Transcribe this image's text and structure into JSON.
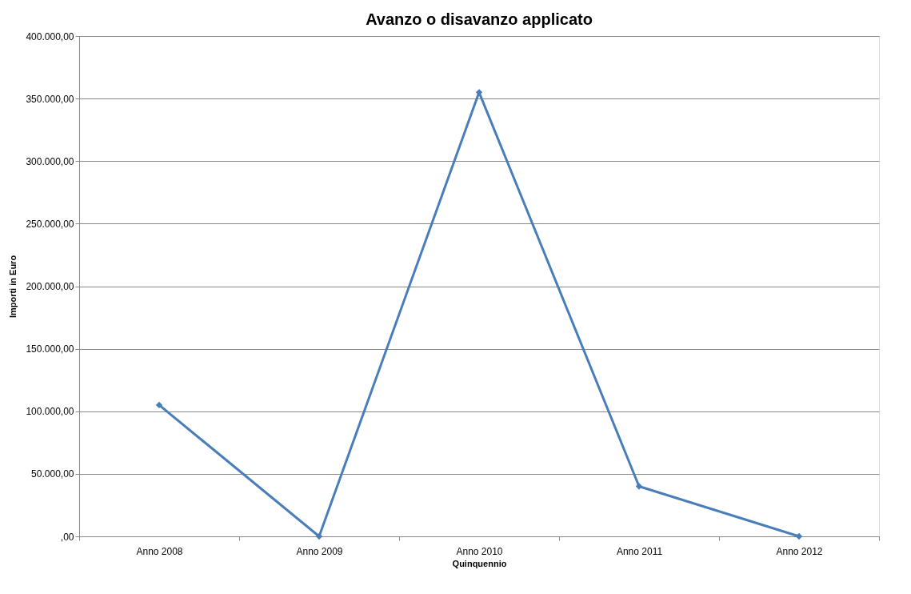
{
  "chart_data": {
    "type": "line",
    "title": "Avanzo o disavanzo applicato",
    "xlabel": "Quinquennio",
    "ylabel": "Importi in Euro",
    "categories": [
      "Anno 2008",
      "Anno 2009",
      "Anno 2010",
      "Anno 2011",
      "Anno 2012"
    ],
    "series": [
      {
        "color": "#4a7ebb",
        "values": [
          105000,
          0,
          355000,
          40000,
          0
        ]
      }
    ],
    "ylim": [
      0,
      400000
    ],
    "yticks": [
      {
        "value": 0,
        "label": ",00"
      },
      {
        "value": 50000,
        "label": "50.000,00"
      },
      {
        "value": 100000,
        "label": "100.000,00"
      },
      {
        "value": 150000,
        "label": "150.000,00"
      },
      {
        "value": 200000,
        "label": "200.000,00"
      },
      {
        "value": 250000,
        "label": "250.000,00"
      },
      {
        "value": 300000,
        "label": "300.000,00"
      },
      {
        "value": 350000,
        "label": "350.000,00"
      },
      {
        "value": 400000,
        "label": "400.000,00"
      }
    ],
    "grid": "y",
    "marker": "diamond",
    "line_style": "solid"
  }
}
